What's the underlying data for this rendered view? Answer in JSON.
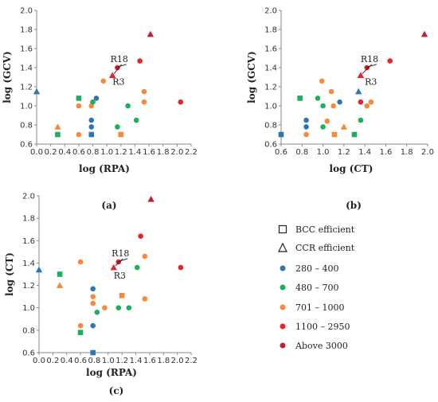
{
  "colors": {
    "c280_400": "#2e75b6",
    "c480_700": "#1cb05c",
    "c701_1000": "#f58a3c",
    "c1100_2950": "#e8242a",
    "c3000": "#c0202a"
  },
  "legend": {
    "items": [
      {
        "label": "BCC efficient",
        "marker": "square-outline"
      },
      {
        "label": "CCR efficient",
        "marker": "triangle-outline"
      },
      {
        "label": "280 – 400",
        "marker": "dot",
        "color": "#2e75b6"
      },
      {
        "label": "480 – 700",
        "marker": "dot",
        "color": "#1cb05c"
      },
      {
        "label": "701 – 1000",
        "marker": "dot",
        "color": "#f58a3c"
      },
      {
        "label": "1100 – 2950",
        "marker": "dot",
        "color": "#e8242a"
      },
      {
        "label": "Above 3000",
        "marker": "dot",
        "color": "#c0202a"
      }
    ]
  },
  "chart_data": [
    {
      "type": "scatter",
      "panel_label": "(a)",
      "xlabel": "log (RPA)",
      "ylabel": "log (GCV)",
      "xlim": [
        0.0,
        2.2
      ],
      "ylim": [
        0.6,
        2.0
      ],
      "xticks": [
        "0.0",
        "0.2",
        "0.4",
        "0.6",
        "0.8",
        "1.0",
        "1.2",
        "1.4",
        "1.6",
        "1.8",
        "2.0",
        "2.2"
      ],
      "yticks": [
        "0.6",
        "0.8",
        "1.0",
        "1.2",
        "1.4",
        "1.6",
        "1.8",
        "2.0"
      ],
      "annotations": [
        {
          "text": "R18",
          "x": 1.05,
          "y": 1.46
        },
        {
          "text": "R3",
          "x": 1.08,
          "y": 1.22
        }
      ],
      "points": [
        {
          "x": 0.0,
          "y": 1.15,
          "group": "280-400",
          "shape": "triangle"
        },
        {
          "x": 0.3,
          "y": 0.78,
          "group": "701-1000",
          "shape": "triangle"
        },
        {
          "x": 0.3,
          "y": 0.7,
          "group": "480-700",
          "shape": "square"
        },
        {
          "x": 0.6,
          "y": 1.08,
          "group": "480-700",
          "shape": "square"
        },
        {
          "x": 0.6,
          "y": 1.0,
          "group": "701-1000",
          "shape": "circle"
        },
        {
          "x": 0.6,
          "y": 0.7,
          "group": "701-1000",
          "shape": "circle"
        },
        {
          "x": 0.78,
          "y": 0.85,
          "group": "280-400",
          "shape": "circle"
        },
        {
          "x": 0.78,
          "y": 0.78,
          "group": "280-400",
          "shape": "circle"
        },
        {
          "x": 0.78,
          "y": 0.7,
          "group": "280-400",
          "shape": "square"
        },
        {
          "x": 0.78,
          "y": 1.0,
          "group": "701-1000",
          "shape": "circle"
        },
        {
          "x": 0.85,
          "y": 1.08,
          "group": "280-400",
          "shape": "circle"
        },
        {
          "x": 0.8,
          "y": 1.04,
          "group": "480-700",
          "shape": "circle"
        },
        {
          "x": 0.95,
          "y": 1.26,
          "group": "701-1000",
          "shape": "circle"
        },
        {
          "x": 1.08,
          "y": 1.32,
          "group": "1100-2950",
          "shape": "triangle"
        },
        {
          "x": 1.15,
          "y": 1.4,
          "group": "1100-2950",
          "shape": "circle"
        },
        {
          "x": 1.15,
          "y": 0.78,
          "group": "480-700",
          "shape": "circle"
        },
        {
          "x": 1.2,
          "y": 0.7,
          "group": "701-1000",
          "shape": "square"
        },
        {
          "x": 1.3,
          "y": 1.0,
          "group": "480-700",
          "shape": "circle"
        },
        {
          "x": 1.42,
          "y": 0.85,
          "group": "480-700",
          "shape": "circle"
        },
        {
          "x": 1.47,
          "y": 1.47,
          "group": "1100-2950",
          "shape": "circle"
        },
        {
          "x": 1.53,
          "y": 1.15,
          "group": "701-1000",
          "shape": "circle"
        },
        {
          "x": 1.53,
          "y": 1.04,
          "group": "701-1000",
          "shape": "circle"
        },
        {
          "x": 1.62,
          "y": 1.75,
          "group": "above-3000",
          "shape": "triangle"
        },
        {
          "x": 2.05,
          "y": 1.04,
          "group": "1100-2950",
          "shape": "circle"
        }
      ]
    },
    {
      "type": "scatter",
      "panel_label": "(b)",
      "xlabel": "log (CT)",
      "ylabel": "log (GCV)",
      "xlim": [
        0.6,
        2.0
      ],
      "ylim": [
        0.6,
        2.0
      ],
      "xticks": [
        "0.6",
        "0.8",
        "1.0",
        "1.2",
        "1.4",
        "1.6",
        "1.8",
        "2.0"
      ],
      "yticks": [
        "0.6",
        "0.8",
        "1.0",
        "1.2",
        "1.4",
        "1.6",
        "1.8",
        "2.0"
      ],
      "annotations": [
        {
          "text": "R18",
          "x": 1.36,
          "y": 1.46
        },
        {
          "text": "R3",
          "x": 1.4,
          "y": 1.22
        }
      ],
      "points": [
        {
          "x": 0.6,
          "y": 0.7,
          "group": "280-400",
          "shape": "square"
        },
        {
          "x": 0.78,
          "y": 1.08,
          "group": "480-700",
          "shape": "square"
        },
        {
          "x": 0.84,
          "y": 0.85,
          "group": "280-400",
          "shape": "circle"
        },
        {
          "x": 0.84,
          "y": 0.78,
          "group": "280-400",
          "shape": "circle"
        },
        {
          "x": 0.84,
          "y": 0.7,
          "group": "701-1000",
          "shape": "circle"
        },
        {
          "x": 0.95,
          "y": 1.08,
          "group": "480-700",
          "shape": "circle"
        },
        {
          "x": 0.99,
          "y": 1.26,
          "group": "701-1000",
          "shape": "circle"
        },
        {
          "x": 1.0,
          "y": 1.0,
          "group": "480-700",
          "shape": "circle"
        },
        {
          "x": 1.0,
          "y": 0.78,
          "group": "480-700",
          "shape": "circle"
        },
        {
          "x": 1.04,
          "y": 0.84,
          "group": "701-1000",
          "shape": "circle"
        },
        {
          "x": 1.08,
          "y": 1.15,
          "group": "701-1000",
          "shape": "circle"
        },
        {
          "x": 1.1,
          "y": 1.0,
          "group": "701-1000",
          "shape": "circle"
        },
        {
          "x": 1.11,
          "y": 0.7,
          "group": "701-1000",
          "shape": "square"
        },
        {
          "x": 1.16,
          "y": 1.04,
          "group": "280-400",
          "shape": "circle"
        },
        {
          "x": 1.2,
          "y": 0.78,
          "group": "701-1000",
          "shape": "triangle"
        },
        {
          "x": 1.3,
          "y": 0.7,
          "group": "480-700",
          "shape": "square"
        },
        {
          "x": 1.34,
          "y": 1.15,
          "group": "280-400",
          "shape": "triangle"
        },
        {
          "x": 1.36,
          "y": 1.04,
          "group": "1100-2950",
          "shape": "circle"
        },
        {
          "x": 1.36,
          "y": 0.85,
          "group": "480-700",
          "shape": "circle"
        },
        {
          "x": 1.36,
          "y": 1.32,
          "group": "1100-2950",
          "shape": "triangle"
        },
        {
          "x": 1.42,
          "y": 1.4,
          "group": "1100-2950",
          "shape": "circle"
        },
        {
          "x": 1.42,
          "y": 1.0,
          "group": "701-1000",
          "shape": "circle"
        },
        {
          "x": 1.46,
          "y": 1.04,
          "group": "701-1000",
          "shape": "circle"
        },
        {
          "x": 1.64,
          "y": 1.47,
          "group": "1100-2950",
          "shape": "circle"
        },
        {
          "x": 1.97,
          "y": 1.75,
          "group": "above-3000",
          "shape": "triangle"
        }
      ]
    },
    {
      "type": "scatter",
      "panel_label": "(c)",
      "xlabel": "log (RPA)",
      "ylabel": "log (CT)",
      "xlim": [
        0.0,
        2.2
      ],
      "ylim": [
        0.6,
        2.0
      ],
      "xticks": [
        "0.0",
        "0.2",
        "0.4",
        "0.6",
        "0.8",
        "1.0",
        "1.2",
        "1.4",
        "1.6",
        "1.8",
        "2.0",
        "2.2"
      ],
      "yticks": [
        "0.6",
        "0.8",
        "1.0",
        "1.2",
        "1.4",
        "1.6",
        "1.8",
        "2.0"
      ],
      "annotations": [
        {
          "text": "R18",
          "x": 1.05,
          "y": 1.46
        },
        {
          "text": "R3",
          "x": 1.08,
          "y": 1.26
        }
      ],
      "points": [
        {
          "x": 0.0,
          "y": 1.34,
          "group": "280-400",
          "shape": "triangle"
        },
        {
          "x": 0.3,
          "y": 1.3,
          "group": "480-700",
          "shape": "square"
        },
        {
          "x": 0.3,
          "y": 1.2,
          "group": "701-1000",
          "shape": "triangle"
        },
        {
          "x": 0.6,
          "y": 1.41,
          "group": "701-1000",
          "shape": "circle"
        },
        {
          "x": 0.6,
          "y": 0.84,
          "group": "701-1000",
          "shape": "circle"
        },
        {
          "x": 0.6,
          "y": 0.78,
          "group": "480-700",
          "shape": "square"
        },
        {
          "x": 0.78,
          "y": 1.17,
          "group": "280-400",
          "shape": "circle"
        },
        {
          "x": 0.78,
          "y": 1.1,
          "group": "701-1000",
          "shape": "circle"
        },
        {
          "x": 0.78,
          "y": 1.04,
          "group": "701-1000",
          "shape": "circle"
        },
        {
          "x": 0.78,
          "y": 0.84,
          "group": "280-400",
          "shape": "circle"
        },
        {
          "x": 0.78,
          "y": 0.6,
          "group": "280-400",
          "shape": "square"
        },
        {
          "x": 0.84,
          "y": 0.96,
          "group": "480-700",
          "shape": "circle"
        },
        {
          "x": 0.95,
          "y": 1.0,
          "group": "701-1000",
          "shape": "circle"
        },
        {
          "x": 1.08,
          "y": 1.36,
          "group": "1100-2950",
          "shape": "triangle"
        },
        {
          "x": 1.15,
          "y": 1.41,
          "group": "1100-2950",
          "shape": "circle"
        },
        {
          "x": 1.15,
          "y": 1.0,
          "group": "480-700",
          "shape": "circle"
        },
        {
          "x": 1.2,
          "y": 1.11,
          "group": "701-1000",
          "shape": "square"
        },
        {
          "x": 1.3,
          "y": 1.0,
          "group": "480-700",
          "shape": "circle"
        },
        {
          "x": 1.42,
          "y": 1.36,
          "group": "480-700",
          "shape": "circle"
        },
        {
          "x": 1.47,
          "y": 1.64,
          "group": "1100-2950",
          "shape": "circle"
        },
        {
          "x": 1.53,
          "y": 1.46,
          "group": "701-1000",
          "shape": "circle"
        },
        {
          "x": 1.53,
          "y": 1.08,
          "group": "701-1000",
          "shape": "circle"
        },
        {
          "x": 1.62,
          "y": 1.97,
          "group": "above-3000",
          "shape": "triangle"
        },
        {
          "x": 2.05,
          "y": 1.36,
          "group": "1100-2950",
          "shape": "circle"
        }
      ]
    }
  ]
}
